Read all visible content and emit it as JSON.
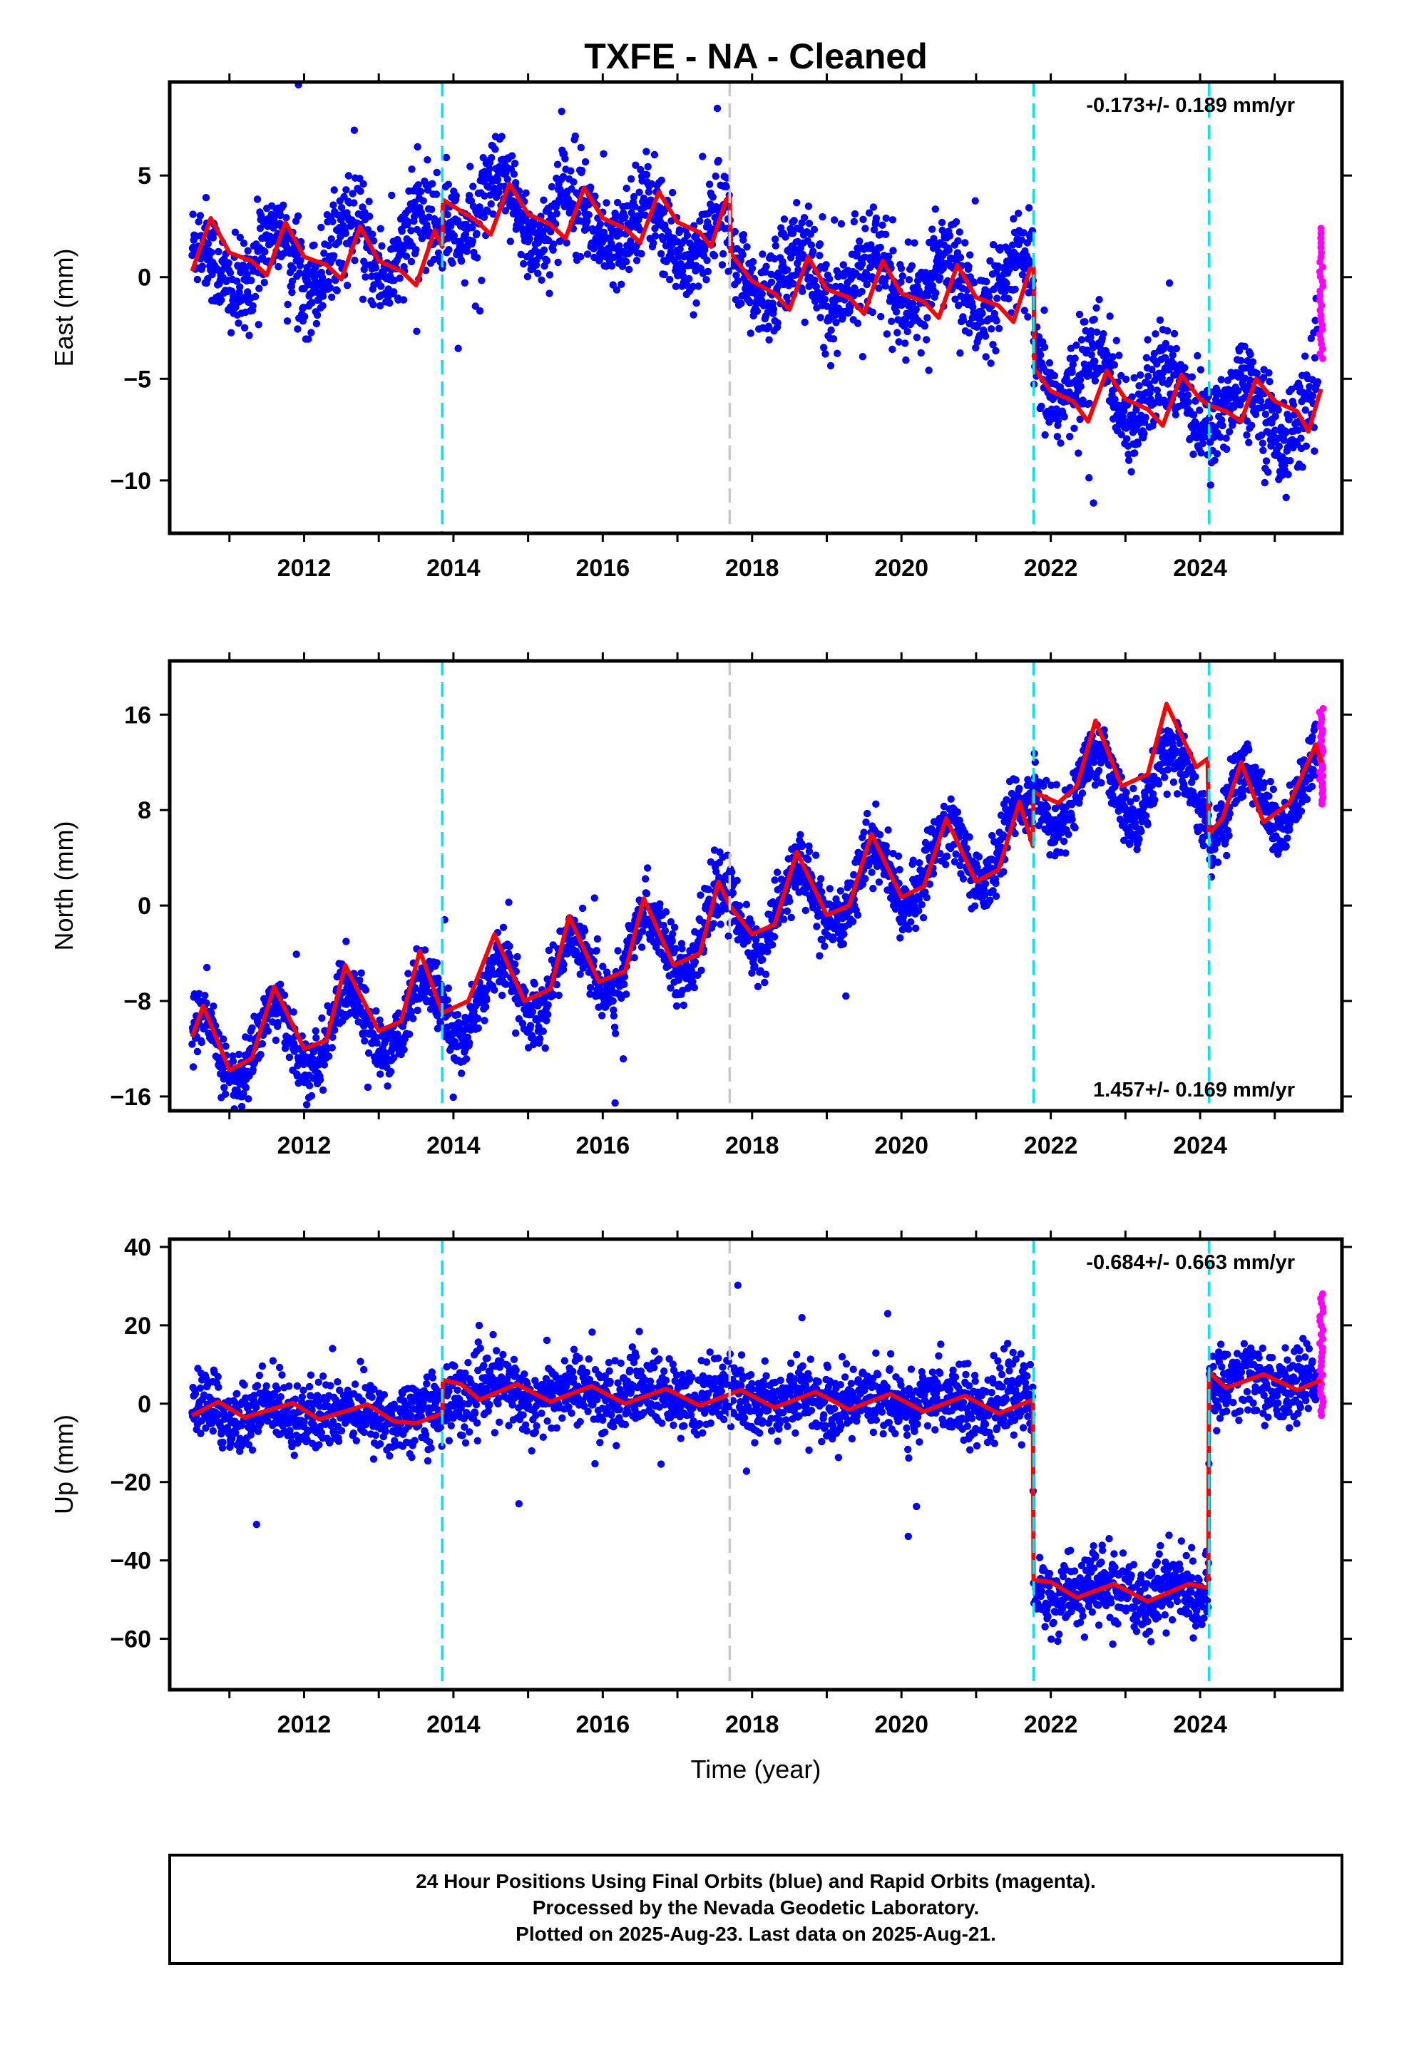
{
  "chart_data": [
    {
      "type": "scatter",
      "title": "TXFE  - NA - Cleaned",
      "xlabel": "",
      "ylabel": "East (mm)",
      "xlim": [
        2010.2,
        2025.9
      ],
      "ylim": [
        -12.6,
        9.6
      ],
      "x_ticks": [
        2012,
        2014,
        2016,
        2018,
        2020,
        2022,
        2024
      ],
      "y_ticks": [
        5,
        0,
        -5,
        -10
      ],
      "y_tick_labels": [
        "5",
        "0",
        "−5",
        "−10"
      ],
      "rate_text": "-0.173+/- 0.189 mm/yr",
      "rate_position": "top-right",
      "event_lines": {
        "cyan": [
          2013.85,
          2021.77,
          2024.12
        ],
        "gray": [
          2017.7
        ]
      },
      "series": [
        {
          "name": "Final Orbits",
          "color": "#0000ff",
          "x_range": [
            2010.5,
            2025.58
          ],
          "trend": [
            [
              2010.5,
              0.3
            ],
            [
              2013.85,
              1.8
            ],
            [
              2013.86,
              3.5
            ],
            [
              2016.0,
              2.8
            ],
            [
              2017.7,
              1.8
            ],
            [
              2017.71,
              0.3
            ],
            [
              2021.76,
              -0.7
            ],
            [
              2021.77,
              -4.6
            ],
            [
              2024.12,
              -6.2
            ],
            [
              2025.58,
              -6.8
            ]
          ],
          "amplitude": 1.4,
          "noise": 1.15
        },
        {
          "name": "Rapid Orbits",
          "color": "#ff00ff",
          "x_range": [
            2025.6,
            2025.65
          ],
          "values_range": [
            -4.0,
            2.4
          ]
        },
        {
          "name": "Model",
          "color": "#ff0000",
          "points": [
            [
              2010.5,
              0.3
            ],
            [
              2010.75,
              2.9
            ],
            [
              2011.0,
              1.2
            ],
            [
              2011.3,
              0.8
            ],
            [
              2011.5,
              0.1
            ],
            [
              2011.75,
              2.7
            ],
            [
              2012.0,
              1.0
            ],
            [
              2012.3,
              0.6
            ],
            [
              2012.5,
              -0.1
            ],
            [
              2012.75,
              2.5
            ],
            [
              2013.0,
              0.8
            ],
            [
              2013.3,
              0.3
            ],
            [
              2013.5,
              -0.4
            ],
            [
              2013.75,
              2.3
            ],
            [
              2013.85,
              1.5
            ],
            [
              2013.86,
              3.8
            ],
            [
              2014.3,
              2.8
            ],
            [
              2014.5,
              2.1
            ],
            [
              2014.75,
              4.6
            ],
            [
              2015.0,
              3.1
            ],
            [
              2015.3,
              2.6
            ],
            [
              2015.5,
              1.9
            ],
            [
              2015.75,
              4.4
            ],
            [
              2016.0,
              2.9
            ],
            [
              2016.3,
              2.4
            ],
            [
              2016.5,
              1.7
            ],
            [
              2016.75,
              4.2
            ],
            [
              2017.0,
              2.7
            ],
            [
              2017.3,
              2.2
            ],
            [
              2017.45,
              1.5
            ],
            [
              2017.65,
              3.8
            ],
            [
              2017.7,
              4.0
            ],
            [
              2017.71,
              1.2
            ],
            [
              2018.0,
              -0.2
            ],
            [
              2018.3,
              -0.8
            ],
            [
              2018.5,
              -1.6
            ],
            [
              2018.75,
              1.0
            ],
            [
              2019.0,
              -0.6
            ],
            [
              2019.3,
              -1.0
            ],
            [
              2019.5,
              -1.8
            ],
            [
              2019.75,
              0.8
            ],
            [
              2020.0,
              -0.8
            ],
            [
              2020.3,
              -1.2
            ],
            [
              2020.5,
              -2.0
            ],
            [
              2020.75,
              0.6
            ],
            [
              2021.0,
              -1.0
            ],
            [
              2021.3,
              -1.4
            ],
            [
              2021.5,
              -2.2
            ],
            [
              2021.72,
              0.4
            ],
            [
              2021.77,
              0.5
            ],
            [
              2021.78,
              -4.5
            ],
            [
              2022.0,
              -5.6
            ],
            [
              2022.3,
              -6.1
            ],
            [
              2022.5,
              -7.1
            ],
            [
              2022.75,
              -4.6
            ],
            [
              2023.0,
              -6.0
            ],
            [
              2023.3,
              -6.5
            ],
            [
              2023.5,
              -7.3
            ],
            [
              2023.75,
              -4.8
            ],
            [
              2024.0,
              -6.0
            ],
            [
              2024.12,
              -6.3
            ],
            [
              2024.35,
              -6.6
            ],
            [
              2024.55,
              -7.1
            ],
            [
              2024.75,
              -5.0
            ],
            [
              2025.0,
              -6.1
            ],
            [
              2025.3,
              -6.6
            ],
            [
              2025.45,
              -7.6
            ],
            [
              2025.62,
              -5.5
            ]
          ]
        }
      ]
    },
    {
      "type": "scatter",
      "title": "",
      "xlabel": "",
      "ylabel": "North (mm)",
      "xlim": [
        2010.2,
        2025.9
      ],
      "ylim": [
        -17.2,
        20.5
      ],
      "x_ticks": [
        2012,
        2014,
        2016,
        2018,
        2020,
        2022,
        2024
      ],
      "y_ticks": [
        16,
        8,
        0,
        -8,
        -16
      ],
      "y_tick_labels": [
        "16",
        "8",
        "0",
        "−8",
        "−16"
      ],
      "rate_text": "1.457+/- 0.169 mm/yr",
      "rate_position": "bottom-right",
      "event_lines": {
        "cyan": [
          2013.85,
          2021.77,
          2024.12
        ],
        "gray": [
          2017.7
        ]
      },
      "series": [
        {
          "name": "Final Orbits",
          "color": "#0000ff",
          "x_range": [
            2010.5,
            2025.58
          ],
          "trend": [
            [
              2010.5,
              -12.5
            ],
            [
              2013.85,
              -8.8
            ],
            [
              2017.7,
              -1.5
            ],
            [
              2021.77,
              6.0
            ],
            [
              2021.78,
              9.5
            ],
            [
              2024.12,
              10.5
            ],
            [
              2024.13,
              7.5
            ],
            [
              2025.58,
              10.0
            ]
          ],
          "amplitude": 3.0,
          "noise": 1.3
        },
        {
          "name": "Rapid Orbits",
          "color": "#ff00ff",
          "x_range": [
            2025.6,
            2025.65
          ],
          "values_range": [
            8.5,
            16.5
          ]
        },
        {
          "name": "Model",
          "color": "#ff0000",
          "points": [
            [
              2010.5,
              -11.0
            ],
            [
              2010.65,
              -8.4
            ],
            [
              2011.0,
              -13.8
            ],
            [
              2011.3,
              -12.8
            ],
            [
              2011.6,
              -6.8
            ],
            [
              2012.0,
              -12.0
            ],
            [
              2012.3,
              -11.3
            ],
            [
              2012.55,
              -5.0
            ],
            [
              2013.0,
              -10.5
            ],
            [
              2013.3,
              -9.7
            ],
            [
              2013.55,
              -3.8
            ],
            [
              2013.85,
              -9.0
            ],
            [
              2014.2,
              -8.0
            ],
            [
              2014.55,
              -2.4
            ],
            [
              2014.95,
              -8.0
            ],
            [
              2015.3,
              -7.0
            ],
            [
              2015.55,
              -0.9
            ],
            [
              2015.95,
              -6.4
            ],
            [
              2016.3,
              -5.5
            ],
            [
              2016.55,
              0.6
            ],
            [
              2016.95,
              -5.0
            ],
            [
              2017.3,
              -4.0
            ],
            [
              2017.55,
              2.0
            ],
            [
              2017.7,
              0.0
            ],
            [
              2018.0,
              -2.4
            ],
            [
              2018.3,
              -1.6
            ],
            [
              2018.6,
              4.5
            ],
            [
              2019.0,
              -0.8
            ],
            [
              2019.3,
              0.0
            ],
            [
              2019.6,
              6.0
            ],
            [
              2020.0,
              0.7
            ],
            [
              2020.3,
              1.6
            ],
            [
              2020.6,
              7.3
            ],
            [
              2021.0,
              2.0
            ],
            [
              2021.3,
              3.0
            ],
            [
              2021.58,
              8.7
            ],
            [
              2021.76,
              5.0
            ],
            [
              2021.77,
              9.5
            ],
            [
              2022.1,
              8.6
            ],
            [
              2022.35,
              10.0
            ],
            [
              2022.6,
              15.5
            ],
            [
              2022.95,
              10.0
            ],
            [
              2023.3,
              11.0
            ],
            [
              2023.55,
              16.9
            ],
            [
              2023.95,
              11.6
            ],
            [
              2024.1,
              12.3
            ],
            [
              2024.12,
              6.0
            ],
            [
              2024.3,
              7.3
            ],
            [
              2024.55,
              12.0
            ],
            [
              2024.85,
              7.0
            ],
            [
              2025.2,
              8.6
            ],
            [
              2025.55,
              13.5
            ],
            [
              2025.62,
              12.0
            ]
          ]
        }
      ]
    },
    {
      "type": "scatter",
      "title": "",
      "xlabel": "Time (year)",
      "ylabel": "Up (mm)",
      "xlim": [
        2010.2,
        2025.9
      ],
      "ylim": [
        -73,
        42
      ],
      "x_ticks": [
        2012,
        2014,
        2016,
        2018,
        2020,
        2022,
        2024
      ],
      "y_ticks": [
        40,
        20,
        0,
        -20,
        -40,
        -60
      ],
      "y_tick_labels": [
        "40",
        "20",
        "0",
        "−20",
        "−40",
        "−60"
      ],
      "rate_text": "-0.684+/- 0.663 mm/yr",
      "rate_position": "top-right",
      "event_lines": {
        "cyan": [
          2013.85,
          2021.77,
          2024.12
        ],
        "gray": [
          2017.7
        ]
      },
      "series": [
        {
          "name": "Final Orbits",
          "color": "#0000ff",
          "x_range": [
            2010.5,
            2025.58
          ],
          "trend": [
            [
              2010.5,
              -2.0
            ],
            [
              2013.85,
              -3.0
            ],
            [
              2013.86,
              3.0
            ],
            [
              2021.76,
              0.0
            ],
            [
              2021.77,
              -48.0
            ],
            [
              2024.11,
              -48.0
            ],
            [
              2024.12,
              6.0
            ],
            [
              2025.58,
              5.0
            ]
          ],
          "amplitude": 2.0,
          "noise": 4.5
        },
        {
          "name": "Rapid Orbits",
          "color": "#ff00ff",
          "x_range": [
            2025.6,
            2025.65
          ],
          "values_range": [
            -3.0,
            28.0
          ]
        },
        {
          "name": "Model",
          "color": "#ff0000",
          "points": [
            [
              2010.5,
              -3.0
            ],
            [
              2010.85,
              0.5
            ],
            [
              2011.2,
              -3.5
            ],
            [
              2011.85,
              0.2
            ],
            [
              2012.2,
              -4.0
            ],
            [
              2012.85,
              -0.2
            ],
            [
              2013.2,
              -4.5
            ],
            [
              2013.5,
              -5.0
            ],
            [
              2013.85,
              -2.5
            ],
            [
              2013.86,
              6.0
            ],
            [
              2014.1,
              5.0
            ],
            [
              2014.35,
              1.0
            ],
            [
              2014.85,
              5.0
            ],
            [
              2015.3,
              0.5
            ],
            [
              2015.85,
              4.5
            ],
            [
              2016.3,
              0.0
            ],
            [
              2016.85,
              3.8
            ],
            [
              2017.3,
              -0.5
            ],
            [
              2017.85,
              3.5
            ],
            [
              2018.3,
              -1.0
            ],
            [
              2018.85,
              3.0
            ],
            [
              2019.3,
              -1.5
            ],
            [
              2019.85,
              2.5
            ],
            [
              2020.3,
              -2.0
            ],
            [
              2020.85,
              2.0
            ],
            [
              2021.3,
              -2.5
            ],
            [
              2021.76,
              1.0
            ],
            [
              2021.77,
              -45.0
            ],
            [
              2022.0,
              -45.5
            ],
            [
              2022.35,
              -49.5
            ],
            [
              2022.85,
              -46.0
            ],
            [
              2023.3,
              -50.5
            ],
            [
              2023.85,
              -46.0
            ],
            [
              2024.11,
              -47.0
            ],
            [
              2024.12,
              8.0
            ],
            [
              2024.35,
              4.0
            ],
            [
              2024.85,
              7.5
            ],
            [
              2025.3,
              3.5
            ],
            [
              2025.62,
              6.0
            ]
          ]
        }
      ]
    }
  ],
  "footer": {
    "line1": "24 Hour Positions Using Final Orbits (blue) and Rapid Orbits (magenta).",
    "line2": "Processed by the Nevada Geodetic Laboratory.",
    "line3": "Plotted on 2025-Aug-23. Last data on 2025-Aug-21."
  }
}
